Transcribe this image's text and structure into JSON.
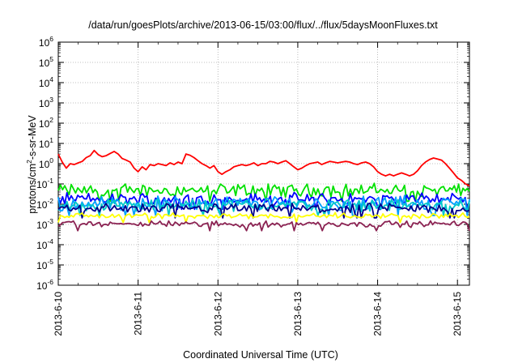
{
  "chart_data": {
    "type": "line",
    "title": "/data/run/goesPlots/archive/2013-06-15/03:00/flux/../flux/5daysMoonFluxes.txt",
    "xlabel": "Coordinated Universal Time (UTC)",
    "ylabel": "protons/cm²-s-sr-MeV",
    "ylabel_parts": {
      "pre": "protons/cm",
      "sup": "2",
      "post": "-s-sr-MeV"
    },
    "yscale": "log",
    "ylim_exponent": [
      -6,
      6
    ],
    "y_tick_base": "10",
    "y_tick_exponents": [
      "-6",
      "-5",
      "-4",
      "-3",
      "-2",
      "-1",
      "0",
      "1",
      "2",
      "3",
      "4",
      "5",
      "6"
    ],
    "x_ticks": [
      "2013-6-10",
      "2013-6-11",
      "2013-6-12",
      "2013-6-13",
      "2013-6-14",
      "2013-6-15"
    ],
    "xlim_days": [
      0,
      5.15
    ],
    "grid": true,
    "series": [
      {
        "color": "#ff0000",
        "x": [
          0.0,
          0.05,
          0.1,
          0.15,
          0.2,
          0.25,
          0.3,
          0.35,
          0.4,
          0.45,
          0.5,
          0.55,
          0.6,
          0.65,
          0.7,
          0.75,
          0.8,
          0.85,
          0.9,
          0.95,
          1.0,
          1.05,
          1.1,
          1.15,
          1.2,
          1.25,
          1.3,
          1.35,
          1.4,
          1.45,
          1.5,
          1.55,
          1.6,
          1.65,
          1.7,
          1.75,
          1.8,
          1.85,
          1.9,
          1.95,
          2.0,
          2.05,
          2.1,
          2.15,
          2.2,
          2.25,
          2.3,
          2.35,
          2.4,
          2.45,
          2.5,
          2.55,
          2.6,
          2.65,
          2.7,
          2.75,
          2.8,
          2.85,
          2.9,
          2.95,
          3.0,
          3.05,
          3.1,
          3.15,
          3.2,
          3.25,
          3.3,
          3.35,
          3.4,
          3.45,
          3.5,
          3.55,
          3.6,
          3.65,
          3.7,
          3.75,
          3.8,
          3.85,
          3.9,
          3.95,
          4.0,
          4.05,
          4.1,
          4.15,
          4.2,
          4.25,
          4.3,
          4.35,
          4.4,
          4.45,
          4.5,
          4.55,
          4.6,
          4.65,
          4.7,
          4.75,
          4.8,
          4.85,
          4.9,
          4.95,
          5.0,
          5.05,
          5.1,
          5.15
        ],
        "y": [
          3.0,
          1.2,
          0.6,
          1.0,
          0.9,
          1.1,
          1.3,
          2.0,
          2.5,
          4.5,
          2.8,
          2.2,
          2.5,
          3.2,
          4.0,
          3.0,
          1.8,
          1.5,
          1.2,
          0.6,
          0.4,
          0.7,
          0.5,
          0.9,
          0.8,
          1.0,
          0.9,
          0.8,
          1.1,
          0.9,
          1.2,
          1.0,
          3.0,
          2.6,
          2.0,
          1.4,
          1.0,
          0.8,
          0.6,
          0.8,
          0.4,
          0.3,
          0.4,
          0.5,
          0.7,
          0.8,
          0.9,
          0.8,
          0.9,
          1.1,
          0.8,
          1.0,
          1.0,
          1.3,
          1.2,
          1.0,
          1.2,
          1.4,
          1.0,
          0.7,
          0.5,
          0.6,
          0.8,
          1.0,
          1.1,
          1.2,
          0.9,
          1.1,
          1.3,
          1.2,
          1.1,
          1.2,
          1.3,
          1.2,
          1.0,
          0.9,
          1.1,
          1.2,
          1.0,
          0.7,
          0.4,
          0.3,
          0.25,
          0.3,
          0.25,
          0.3,
          0.35,
          0.3,
          0.25,
          0.3,
          0.45,
          0.8,
          1.2,
          1.6,
          1.9,
          1.7,
          1.5,
          1.0,
          0.6,
          0.35,
          0.2,
          0.15,
          0.1,
          0.08
        ]
      },
      {
        "color": "#00e000",
        "min": 0.02,
        "max": 0.12
      },
      {
        "color": "#0000ff",
        "min": 0.008,
        "max": 0.04
      },
      {
        "color": "#00a0ff",
        "min": 0.004,
        "max": 0.03
      },
      {
        "color": "#00c8c8",
        "min": 0.004,
        "max": 0.02
      },
      {
        "color": "#00008b",
        "min": 0.003,
        "max": 0.012
      },
      {
        "color": "#ffff00",
        "min": 0.0018,
        "max": 0.004
      },
      {
        "color": "#8b2252",
        "min": 0.0007,
        "max": 0.0016
      }
    ]
  }
}
